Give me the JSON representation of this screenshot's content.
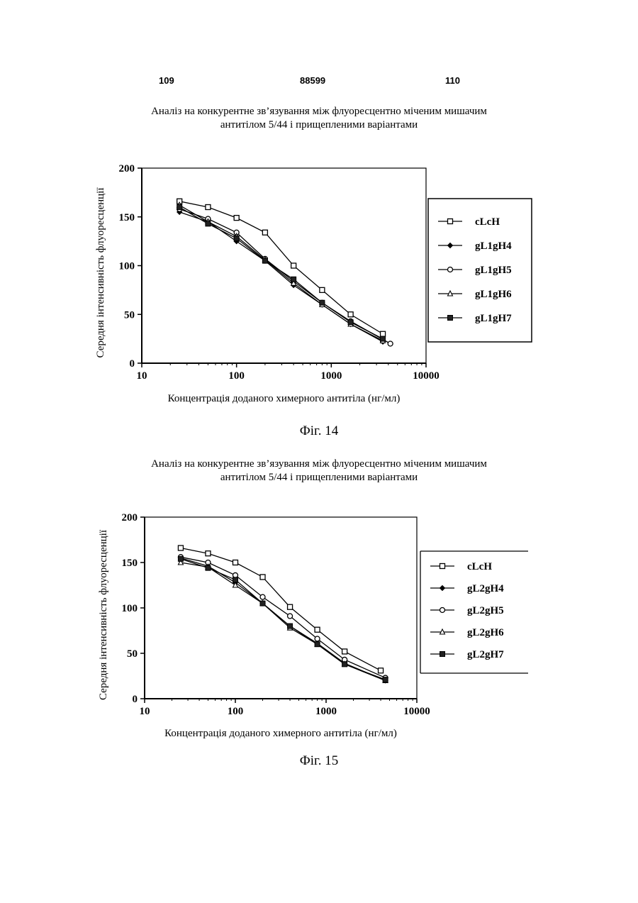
{
  "header": {
    "left": "109",
    "center": "88599",
    "right": "110"
  },
  "chart_data": [
    {
      "type": "line",
      "title": [
        "Аналіз на конкурентне зв’язування між флуоресцентно міченим мишачим",
        "антитілом 5/44 і прищепленими варіантами"
      ],
      "xlabel": "Концентрація доданого химерного антитіла (нг/мл)",
      "ylabel": "Середня інтенсивність флуоресценції",
      "xscale": "log",
      "xlim": [
        10,
        10000
      ],
      "ylim": [
        0,
        200
      ],
      "xticks": [
        10,
        100,
        1000,
        10000
      ],
      "xtick_labels": [
        "10",
        "100",
        "1000",
        "10000"
      ],
      "yticks": [
        0,
        50,
        100,
        150,
        200
      ],
      "ytick_labels": [
        "0",
        "50",
        "100",
        "150",
        "200"
      ],
      "legend_position": "right",
      "caption": "Фіг. 14",
      "series": [
        {
          "name": "cLcH",
          "marker": "square",
          "x": [
            25,
            50,
            100,
            200,
            400,
            800,
            1600,
            3500
          ],
          "y": [
            166,
            160,
            149,
            134,
            100,
            75,
            50,
            30
          ]
        },
        {
          "name": "gL1gH4",
          "marker": "diamond",
          "x": [
            25,
            50,
            100,
            200,
            400,
            800,
            1600,
            3500
          ],
          "y": [
            155,
            145,
            125,
            105,
            80,
            60,
            40,
            22
          ]
        },
        {
          "name": "gL1gH5",
          "marker": "circle",
          "x": [
            25,
            50,
            100,
            200,
            400,
            800,
            1600,
            4200
          ],
          "y": [
            158,
            148,
            134,
            107,
            84,
            62,
            43,
            20
          ]
        },
        {
          "name": "gL1gH6",
          "marker": "triangle",
          "x": [
            25,
            50,
            100,
            200,
            400,
            800,
            1600,
            3500
          ],
          "y": [
            162,
            145,
            130,
            106,
            82,
            60,
            40,
            23
          ]
        },
        {
          "name": "gL1gH7",
          "marker": "filled-square",
          "x": [
            25,
            50,
            100,
            200,
            400,
            800,
            1600,
            3500
          ],
          "y": [
            160,
            143,
            128,
            105,
            86,
            62,
            42,
            25
          ]
        }
      ]
    },
    {
      "type": "line",
      "title": [
        "Аналіз на конкурентне зв’язування між флуоресцентно міченим мишачим",
        "антитілом 5/44 і прищепленими варіантами"
      ],
      "xlabel": "Концентрація доданого химерного антитіла (нг/мл)",
      "ylabel": "Середня інтенсивність флуоресценції",
      "xscale": "log",
      "xlim": [
        10,
        10000
      ],
      "ylim": [
        0,
        200
      ],
      "xticks": [
        10,
        100,
        1000,
        10000
      ],
      "xtick_labels": [
        "10",
        "100",
        "1000",
        "10000"
      ],
      "yticks": [
        0,
        50,
        100,
        150,
        200
      ],
      "ytick_labels": [
        "0",
        "50",
        "100",
        "150",
        "200"
      ],
      "legend_position": "right",
      "caption": "Фіг. 15",
      "series": [
        {
          "name": "cLcH",
          "marker": "square",
          "x": [
            25,
            50,
            100,
            200,
            400,
            800,
            1600,
            4000
          ],
          "y": [
            166,
            160,
            150,
            134,
            101,
            76,
            52,
            31
          ]
        },
        {
          "name": "gL2gH4",
          "marker": "diamond",
          "x": [
            25,
            50,
            100,
            200,
            400,
            800,
            1600,
            4500
          ],
          "y": [
            155,
            146,
            128,
            105,
            80,
            61,
            39,
            20
          ]
        },
        {
          "name": "gL2gH5",
          "marker": "circle",
          "x": [
            25,
            50,
            100,
            200,
            400,
            800,
            1600,
            4500
          ],
          "y": [
            156,
            150,
            136,
            112,
            91,
            66,
            43,
            23
          ]
        },
        {
          "name": "gL2gH6",
          "marker": "triangle",
          "x": [
            25,
            50,
            100,
            200,
            400,
            800,
            1600,
            4500
          ],
          "y": [
            150,
            145,
            125,
            105,
            78,
            60,
            38,
            20
          ]
        },
        {
          "name": "gL2gH7",
          "marker": "filled-square",
          "x": [
            25,
            50,
            100,
            200,
            400,
            800,
            1600,
            4500
          ],
          "y": [
            154,
            144,
            131,
            105,
            80,
            60,
            38,
            21
          ]
        }
      ]
    }
  ]
}
